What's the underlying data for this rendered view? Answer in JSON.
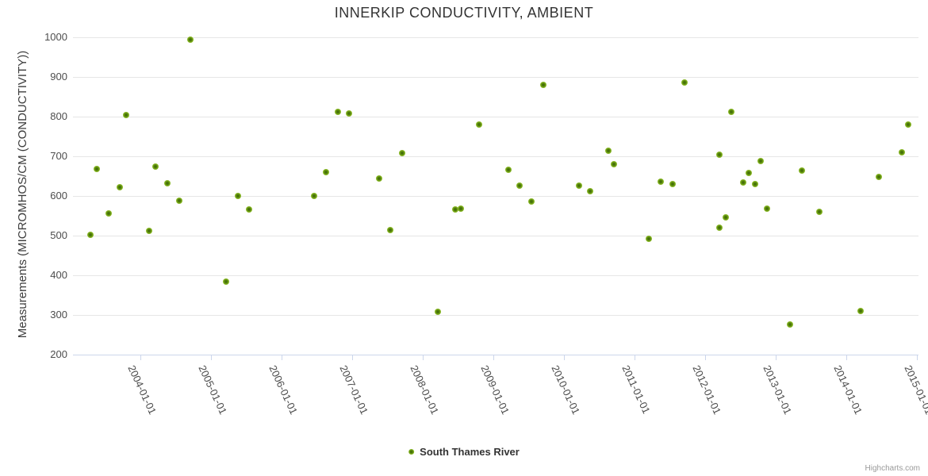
{
  "chart_data": {
    "type": "scatter",
    "title": "INNERKIP CONDUCTIVITY, AMBIENT",
    "xlabel": "",
    "ylabel": "Measurements (MICROMHOS/CM (CONDUCTIVITY))",
    "ylim": [
      200,
      1000
    ],
    "yticks": [
      200,
      300,
      400,
      500,
      600,
      700,
      800,
      900,
      1000
    ],
    "xtick_labels": [
      "2004-01-01",
      "2005-01-01",
      "2006-01-01",
      "2007-01-01",
      "2008-01-01",
      "2009-01-01",
      "2010-01-01",
      "2011-01-01",
      "2012-01-01",
      "2013-01-01",
      "2014-01-01",
      "2015-01-01"
    ],
    "grid": "horizontal-only",
    "legend_position": "bottom-center",
    "marker_colors": {
      "outer": "#a4d040",
      "mid": "#97c433",
      "center": "#3f6b06"
    },
    "series": [
      {
        "name": "South Thames River",
        "color": "#8bba2d",
        "points": [
          {
            "date": "2003-04",
            "value": 503
          },
          {
            "date": "2003-05",
            "value": 668
          },
          {
            "date": "2003-07",
            "value": 557
          },
          {
            "date": "2003-09",
            "value": 623
          },
          {
            "date": "2003-10",
            "value": 805
          },
          {
            "date": "2004-02",
            "value": 513
          },
          {
            "date": "2004-03",
            "value": 675
          },
          {
            "date": "2004-05",
            "value": 632
          },
          {
            "date": "2004-07",
            "value": 588
          },
          {
            "date": "2004-09",
            "value": 995
          },
          {
            "date": "2005-03",
            "value": 384
          },
          {
            "date": "2005-05",
            "value": 600
          },
          {
            "date": "2005-07",
            "value": 567
          },
          {
            "date": "2006-06",
            "value": 601
          },
          {
            "date": "2006-08",
            "value": 661
          },
          {
            "date": "2006-10",
            "value": 812
          },
          {
            "date": "2006-12",
            "value": 808
          },
          {
            "date": "2007-05",
            "value": 644
          },
          {
            "date": "2007-07",
            "value": 515
          },
          {
            "date": "2007-09",
            "value": 708
          },
          {
            "date": "2008-03",
            "value": 308
          },
          {
            "date": "2008-06",
            "value": 567
          },
          {
            "date": "2008-07",
            "value": 568
          },
          {
            "date": "2008-10",
            "value": 780
          },
          {
            "date": "2009-03",
            "value": 667
          },
          {
            "date": "2009-05",
            "value": 627
          },
          {
            "date": "2009-07",
            "value": 586
          },
          {
            "date": "2009-09",
            "value": 880
          },
          {
            "date": "2010-03",
            "value": 627
          },
          {
            "date": "2010-05",
            "value": 613
          },
          {
            "date": "2010-08",
            "value": 714
          },
          {
            "date": "2010-09",
            "value": 680
          },
          {
            "date": "2011-03",
            "value": 493
          },
          {
            "date": "2011-05",
            "value": 637
          },
          {
            "date": "2011-07",
            "value": 630
          },
          {
            "date": "2011-09",
            "value": 887
          },
          {
            "date": "2012-03",
            "value": 521
          },
          {
            "date": "2012-03",
            "value": 704
          },
          {
            "date": "2012-04",
            "value": 546
          },
          {
            "date": "2012-05",
            "value": 812
          },
          {
            "date": "2012-07",
            "value": 634
          },
          {
            "date": "2012-08",
            "value": 658
          },
          {
            "date": "2012-09",
            "value": 631
          },
          {
            "date": "2012-10",
            "value": 688
          },
          {
            "date": "2012-11",
            "value": 568
          },
          {
            "date": "2013-03",
            "value": 276
          },
          {
            "date": "2013-05",
            "value": 664
          },
          {
            "date": "2013-08",
            "value": 561
          },
          {
            "date": "2014-03",
            "value": 310
          },
          {
            "date": "2014-06",
            "value": 648
          },
          {
            "date": "2014-10",
            "value": 710
          },
          {
            "date": "2014-11",
            "value": 780
          }
        ]
      }
    ]
  },
  "credits": "Highcharts.com",
  "colors": {
    "background": "#ffffff",
    "gridline": "#e6e6e6",
    "axis_line": "#ccd6eb",
    "title_text": "#333333",
    "axis_label_text": "#4d4d4d"
  }
}
